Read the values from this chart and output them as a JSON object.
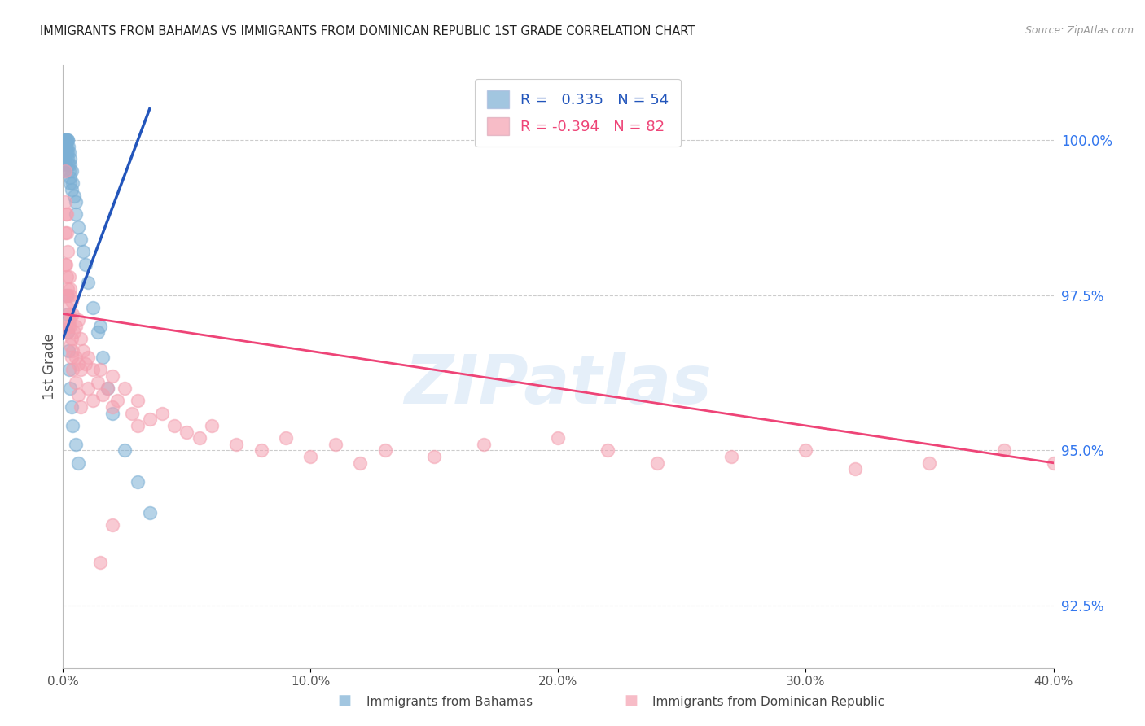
{
  "title": "IMMIGRANTS FROM BAHAMAS VS IMMIGRANTS FROM DOMINICAN REPUBLIC 1ST GRADE CORRELATION CHART",
  "source": "Source: ZipAtlas.com",
  "ylabel": "1st Grade",
  "yaxis_values": [
    92.5,
    95.0,
    97.5,
    100.0
  ],
  "xaxis_ticks": [
    0.0,
    10.0,
    20.0,
    30.0,
    40.0
  ],
  "xlim": [
    0.0,
    40.0
  ],
  "ylim": [
    91.5,
    101.2
  ],
  "legend_r_blue": "0.335",
  "legend_n_blue": "54",
  "legend_r_pink": "-0.394",
  "legend_n_pink": "82",
  "blue_color": "#7BAFD4",
  "pink_color": "#F4A0B0",
  "trend_blue_color": "#2255BB",
  "trend_pink_color": "#EE4477",
  "title_color": "#333333",
  "right_axis_color": "#3377EE",
  "background": "#FFFFFF",
  "grid_color": "#CCCCCC",
  "blue_x": [
    0.05,
    0.05,
    0.08,
    0.08,
    0.1,
    0.1,
    0.1,
    0.12,
    0.12,
    0.15,
    0.15,
    0.15,
    0.18,
    0.18,
    0.2,
    0.2,
    0.22,
    0.22,
    0.25,
    0.25,
    0.28,
    0.28,
    0.3,
    0.3,
    0.35,
    0.35,
    0.4,
    0.45,
    0.5,
    0.5,
    0.6,
    0.7,
    0.8,
    0.9,
    1.0,
    1.2,
    1.4,
    1.6,
    1.8,
    2.0,
    2.5,
    3.0,
    3.5,
    0.15,
    0.18,
    0.2,
    0.22,
    0.25,
    0.3,
    0.35,
    0.4,
    0.5,
    0.6,
    1.5
  ],
  "blue_y": [
    99.8,
    99.5,
    100.0,
    99.7,
    100.0,
    99.8,
    99.6,
    100.0,
    99.9,
    100.0,
    99.9,
    99.8,
    100.0,
    99.8,
    100.0,
    99.7,
    99.9,
    99.6,
    99.8,
    99.5,
    99.7,
    99.4,
    99.6,
    99.3,
    99.5,
    99.2,
    99.3,
    99.1,
    99.0,
    98.8,
    98.6,
    98.4,
    98.2,
    98.0,
    97.7,
    97.3,
    96.9,
    96.5,
    96.0,
    95.6,
    95.0,
    94.5,
    94.0,
    97.5,
    97.2,
    96.9,
    96.6,
    96.3,
    96.0,
    95.7,
    95.4,
    95.1,
    94.8,
    97.0
  ],
  "pink_x": [
    0.05,
    0.08,
    0.1,
    0.12,
    0.15,
    0.15,
    0.18,
    0.2,
    0.2,
    0.22,
    0.25,
    0.25,
    0.28,
    0.3,
    0.3,
    0.35,
    0.35,
    0.4,
    0.4,
    0.45,
    0.5,
    0.5,
    0.6,
    0.6,
    0.7,
    0.7,
    0.8,
    0.9,
    1.0,
    1.0,
    1.2,
    1.2,
    1.4,
    1.5,
    1.6,
    1.8,
    2.0,
    2.0,
    2.2,
    2.5,
    2.8,
    3.0,
    3.0,
    3.5,
    4.0,
    4.5,
    5.0,
    5.5,
    6.0,
    7.0,
    8.0,
    9.0,
    10.0,
    11.0,
    12.0,
    13.0,
    15.0,
    17.0,
    20.0,
    22.0,
    24.0,
    27.0,
    30.0,
    32.0,
    35.0,
    38.0,
    40.0,
    0.1,
    0.1,
    0.12,
    0.15,
    0.18,
    0.2,
    0.25,
    0.3,
    0.35,
    0.4,
    0.5,
    0.6,
    0.7,
    1.5,
    2.0
  ],
  "pink_y": [
    97.5,
    98.0,
    99.5,
    98.8,
    98.5,
    97.8,
    97.6,
    98.2,
    97.3,
    97.0,
    97.8,
    97.2,
    97.5,
    97.6,
    97.0,
    97.4,
    96.8,
    97.2,
    96.6,
    96.9,
    97.0,
    96.5,
    97.1,
    96.4,
    96.8,
    96.3,
    96.6,
    96.4,
    96.5,
    96.0,
    96.3,
    95.8,
    96.1,
    96.3,
    95.9,
    96.0,
    96.2,
    95.7,
    95.8,
    96.0,
    95.6,
    95.8,
    95.4,
    95.5,
    95.6,
    95.4,
    95.3,
    95.2,
    95.4,
    95.1,
    95.0,
    95.2,
    94.9,
    95.1,
    94.8,
    95.0,
    94.9,
    95.1,
    95.2,
    95.0,
    94.8,
    94.9,
    95.0,
    94.7,
    94.8,
    95.0,
    94.8,
    99.0,
    98.5,
    98.0,
    98.8,
    97.5,
    96.9,
    97.1,
    96.7,
    96.5,
    96.3,
    96.1,
    95.9,
    95.7,
    93.2,
    93.8
  ]
}
